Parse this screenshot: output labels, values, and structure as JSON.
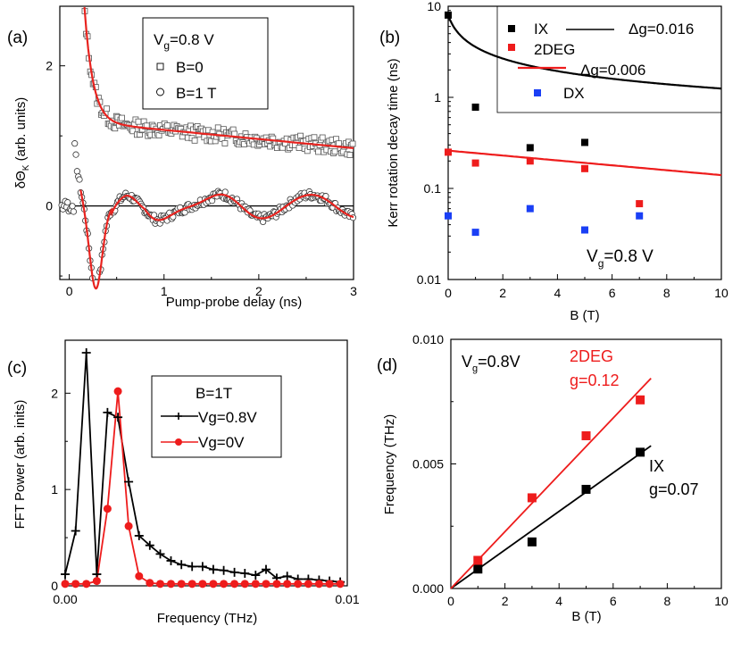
{
  "chart_data": [
    {
      "panel": "(a)",
      "type": "scatter",
      "xlabel": "Pump-probe delay (ns)",
      "ylabel": "δΘ",
      "ylabel_sub": "K",
      "ylabel_tail": " (arb. units)",
      "xlim": [
        -0.1,
        3.0
      ],
      "ylim": [
        -1.05,
        2.85
      ],
      "xticks": [
        "0",
        "1",
        "2",
        "3"
      ],
      "yticks": [
        "0",
        "2"
      ],
      "legend_title": "V",
      "legend_title_sub": "g",
      "legend_title_tail": "=0.8 V",
      "legend_labels": [
        "B=0",
        "B=1 T"
      ],
      "series": [
        {
          "name": "B=0",
          "marker": "open-square",
          "offset": 1.0,
          "fit": {
            "A": 4.6,
            "tau": 0.095,
            "baseline_start": 1.1,
            "baseline_end": 0.8
          }
        },
        {
          "name": "B=1 T",
          "marker": "open-circle",
          "offset": 0.0,
          "fit": {
            "A_fast": 7.5,
            "fast_period": 0.55,
            "tau_fast": 0.13,
            "A_slow": 0.22,
            "slow_period": 0.95,
            "phase_ns": 1.56
          }
        }
      ],
      "fit_color": "#e8231f"
    },
    {
      "panel": "(b)",
      "type": "scatter",
      "xlabel": "B (T)",
      "ylabel": "Kerr rotation decay time (ns)",
      "xlim": [
        0,
        10
      ],
      "ylim_log10": [
        -2,
        1
      ],
      "yscale": "log",
      "xticks": [
        "0",
        "2",
        "4",
        "6",
        "8",
        "10"
      ],
      "yticks": [
        "0.01",
        "0.1",
        "1",
        "10"
      ],
      "annotation": "V",
      "annotation_sub": "g",
      "annotation_tail": "=0.8 V",
      "series": [
        {
          "name": "IX",
          "color": "#000000",
          "x": [
            0,
            1,
            3,
            5
          ],
          "y": [
            8.0,
            0.78,
            0.28,
            0.32
          ],
          "fit_label": "Δg=0.016"
        },
        {
          "name": "2DEG",
          "color": "#ee1c1c",
          "x": [
            0,
            1,
            3,
            5,
            7
          ],
          "y": [
            0.25,
            0.19,
            0.2,
            0.165,
            0.068
          ],
          "fit_label": "Δg=0.006"
        },
        {
          "name": "DX",
          "color": "#1a3ff5",
          "x": [
            0,
            1,
            3,
            5,
            7
          ],
          "y": [
            0.05,
            0.033,
            0.06,
            0.035,
            0.05
          ]
        }
      ],
      "fit_curves": [
        {
          "series": "IX",
          "y_at_B0": 8.0,
          "decay_B": 0.25
        },
        {
          "series": "2DEG",
          "y_at_0": 0.26,
          "y_at_10": 0.14
        }
      ]
    },
    {
      "panel": "(c)",
      "type": "line",
      "xlabel": "Frequency (THz)",
      "ylabel": "FFT Power (arb. inits)",
      "xlim": [
        0,
        0.01
      ],
      "ylim": [
        0,
        2.55
      ],
      "xticks": [
        "0.00",
        "0.01"
      ],
      "yticks": [
        "0",
        "1",
        "2"
      ],
      "legend_title": "B=1T",
      "series": [
        {
          "name": "Vg=0.8V",
          "color": "#000000",
          "marker": "plus",
          "x": [
            0.0,
            0.00037,
            0.00075,
            0.00112,
            0.0015,
            0.00187,
            0.00225,
            0.00262,
            0.003,
            0.00337,
            0.00375,
            0.00412,
            0.0045,
            0.00487,
            0.00525,
            0.00562,
            0.006,
            0.00637,
            0.00675,
            0.00712,
            0.0075,
            0.00787,
            0.00825,
            0.00862,
            0.009,
            0.00937,
            0.00975
          ],
          "y": [
            0.12,
            0.57,
            2.42,
            0.12,
            1.8,
            1.75,
            1.08,
            0.52,
            0.42,
            0.33,
            0.26,
            0.22,
            0.2,
            0.2,
            0.17,
            0.16,
            0.14,
            0.13,
            0.11,
            0.17,
            0.08,
            0.1,
            0.07,
            0.07,
            0.06,
            0.05,
            0.04
          ]
        },
        {
          "name": "Vg=0V",
          "color": "#ee1c1c",
          "marker": "dot",
          "x": [
            0.0,
            0.00037,
            0.00075,
            0.00112,
            0.0015,
            0.00187,
            0.00225,
            0.00262,
            0.003,
            0.00337,
            0.00375,
            0.00412,
            0.0045,
            0.00487,
            0.00525,
            0.00562,
            0.006,
            0.00637,
            0.00675,
            0.00712,
            0.0075,
            0.00787,
            0.00825,
            0.00862,
            0.009,
            0.00937,
            0.00975
          ],
          "y": [
            0.02,
            0.02,
            0.02,
            0.05,
            0.8,
            2.02,
            0.62,
            0.1,
            0.03,
            0.02,
            0.02,
            0.02,
            0.02,
            0.02,
            0.02,
            0.02,
            0.02,
            0.02,
            0.02,
            0.02,
            0.02,
            0.02,
            0.02,
            0.02,
            0.02,
            0.02,
            0.02
          ]
        }
      ]
    },
    {
      "panel": "(d)",
      "type": "scatter",
      "xlabel": "B (T)",
      "ylabel": "Frequency (THz)",
      "xlim": [
        0,
        10
      ],
      "ylim": [
        0,
        0.01
      ],
      "xticks": [
        "0",
        "2",
        "4",
        "6",
        "8",
        "10"
      ],
      "yticks": [
        "0.000",
        "0.005",
        "0.010"
      ],
      "annotation": "V",
      "annotation_sub": "g",
      "annotation_tail": "=0.8V",
      "series": [
        {
          "name": "IX",
          "color": "#000000",
          "x": [
            1,
            3,
            5,
            7
          ],
          "y": [
            0.00078,
            0.00187,
            0.00398,
            0.00547
          ],
          "label": "IX",
          "g_label": "g=0.07",
          "slope": 0.000774,
          "line_x_end": 7.4
        },
        {
          "name": "2DEG",
          "color": "#ee1c1c",
          "x": [
            1,
            3,
            5,
            7
          ],
          "y": [
            0.00113,
            0.00364,
            0.00613,
            0.00757
          ],
          "label": "2DEG",
          "g_label": "g=0.12",
          "slope": 0.00114,
          "line_x_end": 7.4
        }
      ]
    }
  ]
}
